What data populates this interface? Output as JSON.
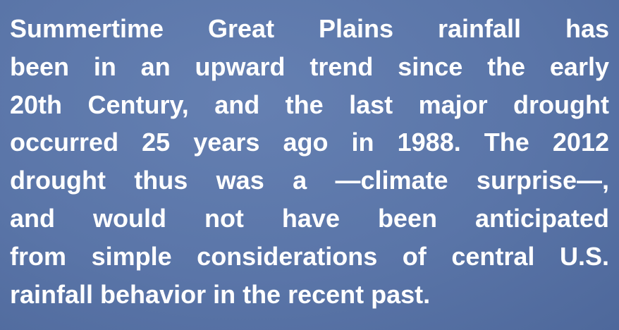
{
  "body": {
    "lines": [
      "Summertime Great Plains rainfall has",
      "been in an upward trend since the early",
      "20th Century, and the last major drought",
      "occurred 25 years ago in 1988. The 2012",
      "drought thus was a —climate surprise—,",
      "and would not have been anticipated",
      "from simple considerations of central U.S.",
      "rainfall behavior in the recent past."
    ]
  }
}
